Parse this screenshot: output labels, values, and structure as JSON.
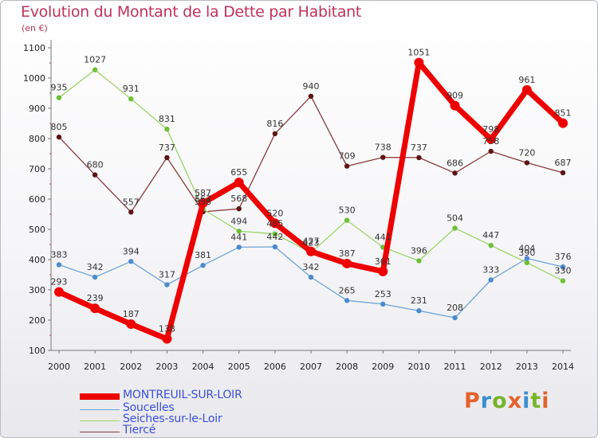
{
  "header": {
    "title": "Evolution du Montant de la Dette par Habitant",
    "subtitle": "(en €)"
  },
  "logo": {
    "text": "Proxiti",
    "letter_colors": [
      "#e5622d",
      "#3a8fd0",
      "#78b42a",
      "#e5622d",
      "#3a8fd0",
      "#78b42a",
      "#e5622d"
    ]
  },
  "chart_data": {
    "type": "line",
    "title": "Evolution du Montant de la Dette par Habitant",
    "subtitle": "(en €)",
    "xlabel": "",
    "ylabel": "",
    "x": [
      "2000",
      "2001",
      "2002",
      "2003",
      "2004",
      "2005",
      "2006",
      "2007",
      "2008",
      "2009",
      "2010",
      "2011",
      "2012",
      "2013",
      "2014"
    ],
    "ylim": [
      100,
      1100
    ],
    "yticks": [
      100,
      200,
      300,
      400,
      500,
      600,
      700,
      800,
      900,
      1000,
      1100
    ],
    "grid": false,
    "legend_position": "bottom-left",
    "series": [
      {
        "name": "MONTREUIL-SUR-LOIR",
        "color": "#ee0000",
        "point_color": "#ee0000",
        "values": [
          293,
          239,
          187,
          138,
          587,
          655,
          520,
          427,
          387,
          361,
          1051,
          909,
          798,
          961,
          851
        ]
      },
      {
        "name": "Soucelles",
        "color": "#6ea3d6",
        "point_color": "#4c8bd0",
        "values": [
          383,
          342,
          394,
          317,
          381,
          441,
          442,
          342,
          265,
          253,
          231,
          208,
          333,
          404,
          376
        ]
      },
      {
        "name": "Seiches-sur-le-Loir",
        "color": "#9dd46a",
        "point_color": "#6cc035",
        "values": [
          935,
          1027,
          931,
          831,
          567,
          494,
          485,
          423,
          530,
          441,
          396,
          504,
          447,
          390,
          330
        ]
      },
      {
        "name": "Tiercé",
        "color": "#8a3a3a",
        "point_color": "#5e1414",
        "values": [
          805,
          680,
          557,
          737,
          558,
          568,
          816,
          940,
          709,
          738,
          737,
          686,
          758,
          720,
          687
        ]
      }
    ]
  }
}
